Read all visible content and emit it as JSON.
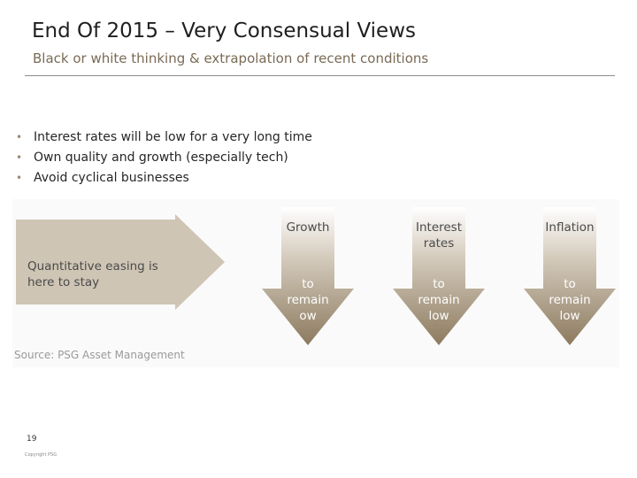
{
  "slide": {
    "title": "End Of 2015 – Very Consensual Views",
    "subtitle": "Black or white thinking & extrapolation of recent conditions",
    "bullets": [
      "Interest rates will be low for a very long time",
      "Own quality and growth (especially tech)",
      "Avoid cyclical businesses"
    ]
  },
  "figure": {
    "big_arrow_text": [
      "Quantitative easing is",
      "here to stay"
    ],
    "arrows": [
      {
        "top": [
          "Growth"
        ],
        "bottom": [
          "to",
          "remain",
          "ow"
        ]
      },
      {
        "top": [
          "Interest",
          "rates"
        ],
        "bottom": [
          "to",
          "remain",
          "low"
        ]
      },
      {
        "top": [
          "Inflation"
        ],
        "bottom": [
          "to",
          "remain",
          "low"
        ]
      }
    ],
    "source": "Source: PSG Asset Management"
  },
  "footer": {
    "page_number": "19",
    "copyright": "Copyright PSG"
  },
  "colors": {
    "arrow_light": "#d6cdbf",
    "arrow_dark": "#8c7a5e",
    "big_arrow": "#cfc5b5",
    "accent": "#7a6a55"
  }
}
